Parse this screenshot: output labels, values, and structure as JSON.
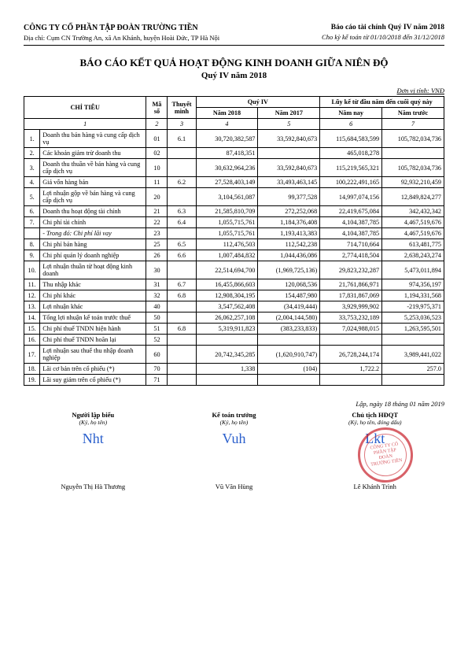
{
  "header": {
    "company_name": "CÔNG TY CỔ PHẦN TẬP ĐOÀN TRƯỜNG TIỀN",
    "address": "Địa chỉ: Cụm CN Trường An, xã An Khánh, huyện Hoài Đức, TP Hà Nội",
    "report_title": "Báo cáo tài chính Quý IV năm 2018",
    "period": "Cho kỳ kế toán từ 01/10/2018 đến 31/12/2018"
  },
  "titles": {
    "main": "BÁO CÁO KẾT QUẢ HOẠT ĐỘNG KINH DOANH GIỮA NIÊN ĐỘ",
    "sub": "Quý IV năm 2018",
    "unit": "Đơn vị tính: VNĐ"
  },
  "table_headers": {
    "chi_tieu": "CHỈ TIÊU",
    "ma_so": "Mã số",
    "thuyet_minh": "Thuyết minh",
    "quy": "Quý IV",
    "luy_ke": "Lũy kế từ đầu năm đến cuối quý này",
    "nam_2018": "Năm 2018",
    "nam_2017": "Năm 2017",
    "nam_nay": "Năm nay",
    "nam_truoc": "Năm trước"
  },
  "col_index": {
    "c1": "1",
    "c2": "2",
    "c3": "3",
    "c4": "4",
    "c5": "5",
    "c6": "6",
    "c7": "7"
  },
  "rows": [
    {
      "idx": "1.",
      "label": "Doanh thu bán hàng và cung cấp dịch vụ",
      "code": "01",
      "note": "6.1",
      "q18": "30,720,382,587",
      "q17": "33,592,840,673",
      "ytd": "115,684,583,599",
      "ytdprev": "105,782,034,736",
      "italic": false
    },
    {
      "idx": "2.",
      "label": "Các khoản giảm trừ doanh thu",
      "code": "02",
      "note": "",
      "q18": "87,418,351",
      "q17": "",
      "ytd": "465,018,278",
      "ytdprev": "",
      "italic": false
    },
    {
      "idx": "3.",
      "label": "Doanh thu thuần về bán hàng và cung cấp dịch vụ",
      "code": "10",
      "note": "",
      "q18": "30,632,964,236",
      "q17": "33,592,840,673",
      "ytd": "115,219,565,321",
      "ytdprev": "105,782,034,736",
      "italic": false
    },
    {
      "idx": "4.",
      "label": "Giá vốn hàng bán",
      "code": "11",
      "note": "6.2",
      "q18": "27,528,403,149",
      "q17": "33,493,463,145",
      "ytd": "100,222,491,165",
      "ytdprev": "92,932,210,459",
      "italic": false
    },
    {
      "idx": "5.",
      "label": "Lợi nhuận gộp về bán hàng và cung cấp dịch vụ",
      "code": "20",
      "note": "",
      "q18": "3,104,561,087",
      "q17": "99,377,528",
      "ytd": "14,997,074,156",
      "ytdprev": "12,849,824,277",
      "italic": false
    },
    {
      "idx": "6.",
      "label": "Doanh thu hoạt động tài chính",
      "code": "21",
      "note": "6.3",
      "q18": "21,585,810,709",
      "q17": "272,252,068",
      "ytd": "22,419,675,084",
      "ytdprev": "342,432,342",
      "italic": false
    },
    {
      "idx": "7.",
      "label": "Chi phí tài chính",
      "code": "22",
      "note": "6.4",
      "q18": "1,055,715,761",
      "q17": "1,184,376,408",
      "ytd": "4,104,387,785",
      "ytdprev": "4,467,519,676",
      "italic": false
    },
    {
      "idx": "",
      "label": "- Trong đó: Chi phí lãi vay",
      "code": "23",
      "note": "",
      "q18": "1,055,715,761",
      "q17": "1,193,413,383",
      "ytd": "4,104,387,785",
      "ytdprev": "4,467,519,676",
      "italic": true
    },
    {
      "idx": "8.",
      "label": "Chi phí bán hàng",
      "code": "25",
      "note": "6.5",
      "q18": "112,476,503",
      "q17": "112,542,238",
      "ytd": "714,710,664",
      "ytdprev": "613,481,775",
      "italic": false
    },
    {
      "idx": "9.",
      "label": "Chi phí quản lý doanh nghiệp",
      "code": "26",
      "note": "6.6",
      "q18": "1,007,484,832",
      "q17": "1,044,436,086",
      "ytd": "2,774,418,504",
      "ytdprev": "2,638,243,274",
      "italic": false
    },
    {
      "idx": "10.",
      "label": "Lợi nhuận thuần từ hoạt động kinh doanh",
      "code": "30",
      "note": "",
      "q18": "22,514,694,700",
      "q17": "(1,969,725,136)",
      "ytd": "29,823,232,287",
      "ytdprev": "5,473,011,894",
      "italic": false
    },
    {
      "idx": "11.",
      "label": "Thu nhập khác",
      "code": "31",
      "note": "6.7",
      "q18": "16,455,866,603",
      "q17": "120,068,536",
      "ytd": "21,761,866,971",
      "ytdprev": "974,356,197",
      "italic": false
    },
    {
      "idx": "12.",
      "label": "Chi phí khác",
      "code": "32",
      "note": "6.8",
      "q18": "12,908,304,195",
      "q17": "154,487,980",
      "ytd": "17,831,867,069",
      "ytdprev": "1,194,331,568",
      "italic": false
    },
    {
      "idx": "13.",
      "label": "Lợi nhuận khác",
      "code": "40",
      "note": "",
      "q18": "3,547,562,408",
      "q17": "(34,419,444)",
      "ytd": "3,929,999,902",
      "ytdprev": "-219,975,371",
      "italic": false
    },
    {
      "idx": "14.",
      "label": "Tổng lợi nhuận kế toán trước thuế",
      "code": "50",
      "note": "",
      "q18": "26,062,257,108",
      "q17": "(2,004,144,580)",
      "ytd": "33,753,232,189",
      "ytdprev": "5,253,036,523",
      "italic": false
    },
    {
      "idx": "15.",
      "label": "Chi phí thuế TNDN hiện hành",
      "code": "51",
      "note": "6.8",
      "q18": "5,319,911,823",
      "q17": "(383,233,833)",
      "ytd": "7,024,988,015",
      "ytdprev": "1,263,595,501",
      "italic": false
    },
    {
      "idx": "16.",
      "label": "Chi phí thuế TNDN hoãn lại",
      "code": "52",
      "note": "",
      "q18": "",
      "q17": "",
      "ytd": "",
      "ytdprev": "",
      "italic": false
    },
    {
      "idx": "17.",
      "label": "Lợi nhuận sau thuế thu nhập doanh nghiệp",
      "code": "60",
      "note": "",
      "q18": "20,742,345,285",
      "q17": "(1,620,910,747)",
      "ytd": "26,728,244,174",
      "ytdprev": "3,989,441,022",
      "italic": false
    },
    {
      "idx": "18.",
      "label": "Lãi cơ bản trên cổ phiếu (*)",
      "code": "70",
      "note": "",
      "q18": "1,338",
      "q17": "(104)",
      "ytd": "1,722.2",
      "ytdprev": "257.0",
      "italic": false
    },
    {
      "idx": "19.",
      "label": "Lãi suy giảm trên cổ phiếu (*)",
      "code": "71",
      "note": "",
      "q18": "",
      "q17": "",
      "ytd": "",
      "ytdprev": "",
      "italic": false
    }
  ],
  "signatures": {
    "date": "Lập, ngày 18 tháng 01 năm 2019",
    "col1": {
      "role": "Người lập biểu",
      "hint": "(Ký, họ tên)",
      "mark": "Nht",
      "name": "Nguyễn Thị Hà Thương"
    },
    "col2": {
      "role": "Kế toán trưởng",
      "hint": "(Ký, họ tên)",
      "mark": "Vuh",
      "name": "Vũ Văn Hùng"
    },
    "col3": {
      "role": "Chủ tịch HĐQT",
      "hint": "(Ký, họ tên, đóng dấu)",
      "mark": "Lkt",
      "name": "Lê Khánh Trình"
    },
    "stamp_text": "CÔNG TY CỔ PHẦN TẬP ĐOÀN TRƯỜNG TIỀN"
  }
}
